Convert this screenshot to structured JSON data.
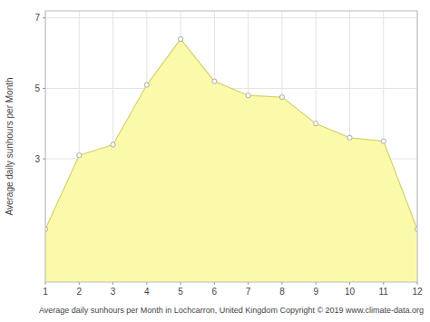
{
  "chart_data": {
    "type": "area",
    "x": [
      1,
      2,
      3,
      4,
      5,
      6,
      7,
      8,
      9,
      10,
      11,
      12
    ],
    "values": [
      1.0,
      3.1,
      3.4,
      5.1,
      6.4,
      5.2,
      4.8,
      4.75,
      4.0,
      3.6,
      3.5,
      1.0
    ],
    "color": "#FAFAAA",
    "marker": "circle",
    "xlabel": "Average daily sunhours per Month in Lochcarron, United Kingdom Copyright © 2019 www.climate-data.org",
    "ylabel": "Average daily sunhours per Month",
    "xlim": [
      1,
      12
    ],
    "ylim": [
      -0.5,
      7.2
    ],
    "xticks": [
      1,
      2,
      3,
      4,
      5,
      6,
      7,
      8,
      9,
      10,
      11,
      12
    ],
    "yticks": [
      3,
      5,
      7
    ],
    "grid": true
  }
}
